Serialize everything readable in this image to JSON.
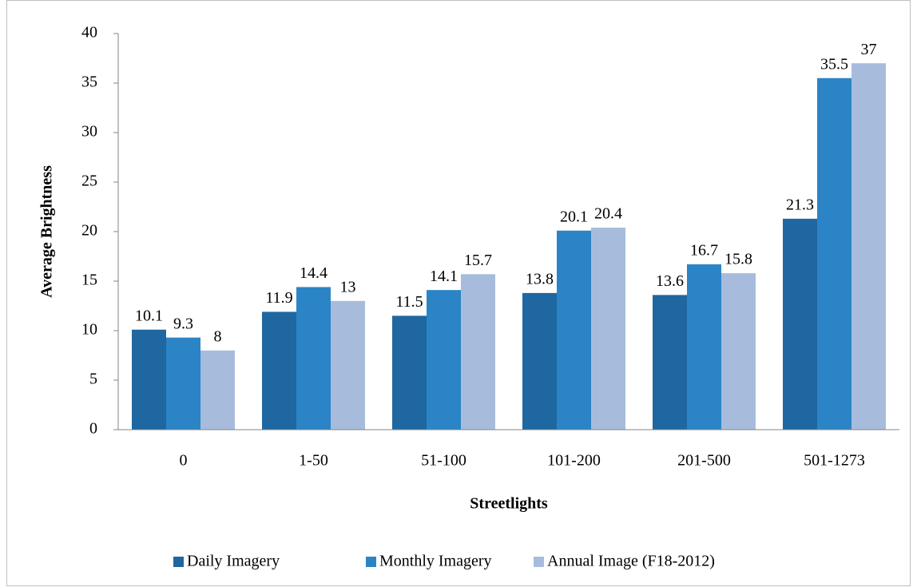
{
  "chart_data": {
    "type": "bar",
    "x_label": "Streetlights",
    "y_label": "Average Brightness",
    "categories": [
      "0",
      "1-50",
      "51-100",
      "101-200",
      "201-500",
      "501-1273"
    ],
    "series": [
      {
        "name": "Daily Imagery",
        "color": "#1f67a0",
        "values": [
          10.1,
          11.9,
          11.5,
          13.8,
          13.6,
          21.3
        ]
      },
      {
        "name": "Monthly Imagery",
        "color": "#2b84c5",
        "values": [
          9.3,
          14.4,
          14.1,
          20.1,
          16.7,
          35.5
        ]
      },
      {
        "name": "Annual Image (F18-2012)",
        "color": "#a7bcdc",
        "values": [
          8,
          13,
          15.7,
          20.4,
          15.8,
          37
        ]
      }
    ],
    "ylim": [
      0,
      40
    ],
    "yticks": [
      0,
      5,
      10,
      15,
      20,
      25,
      30,
      35,
      40
    ],
    "legend": "bottom"
  }
}
